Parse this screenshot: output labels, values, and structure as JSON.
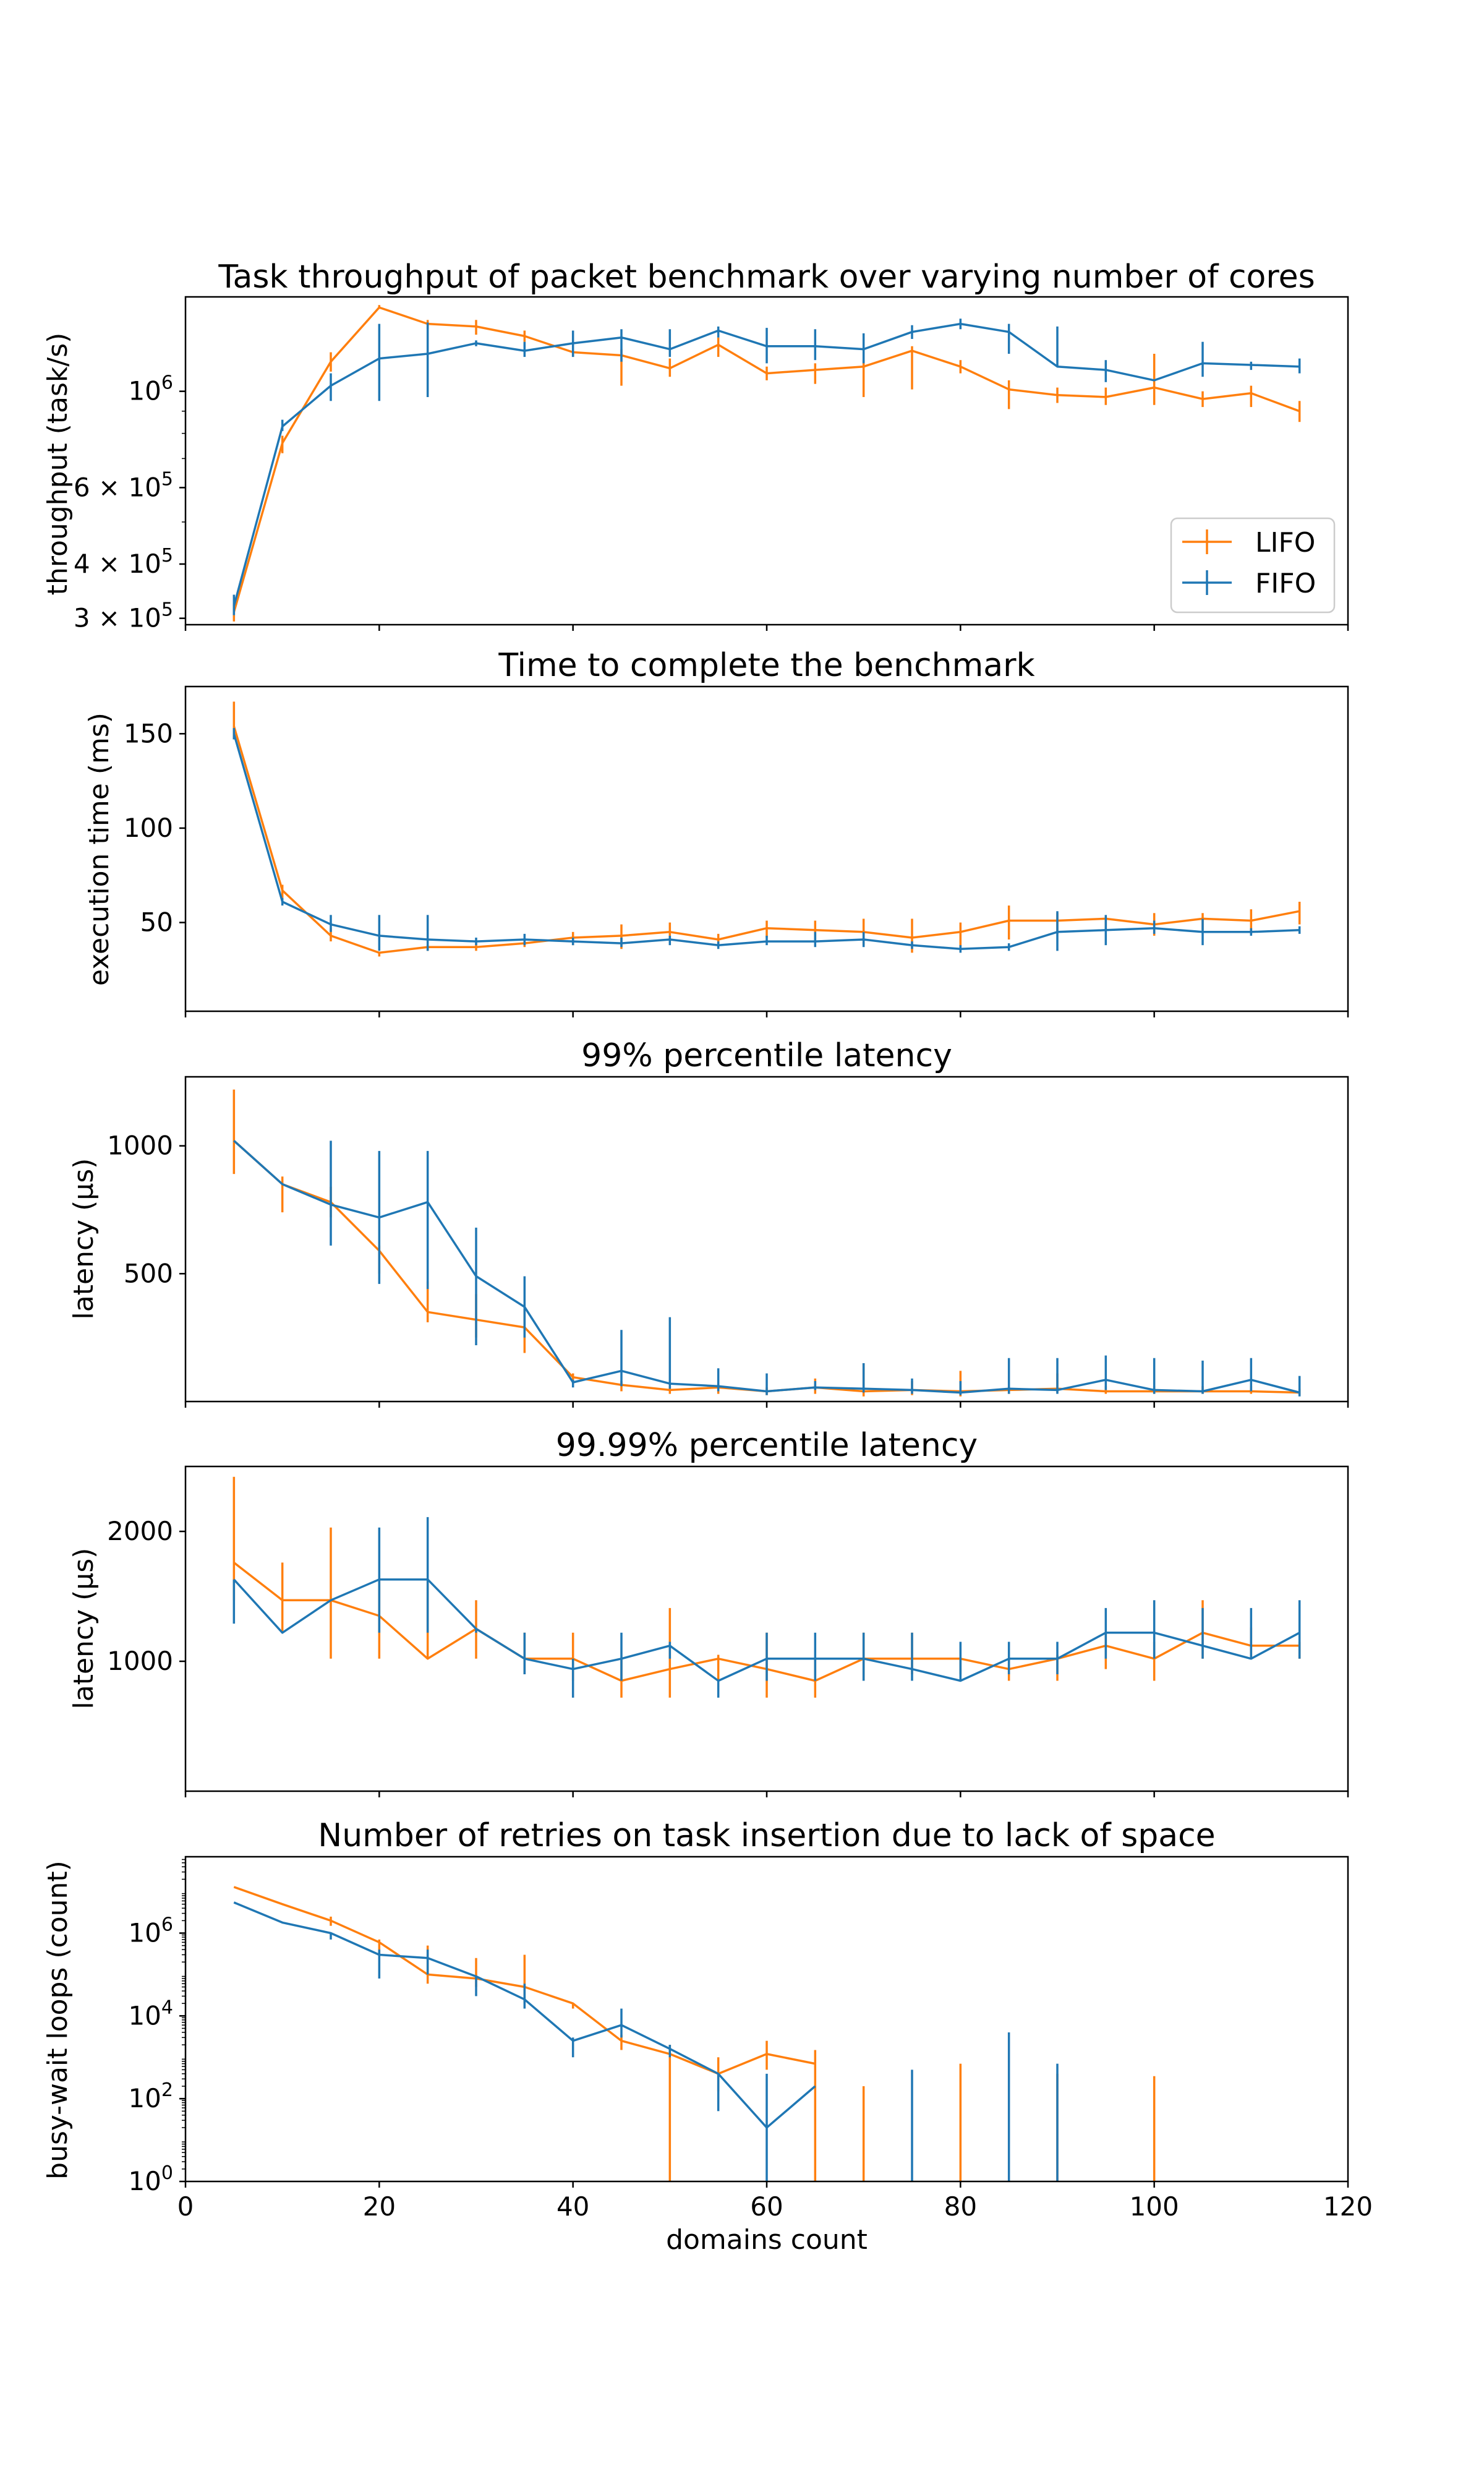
{
  "colors": {
    "LIFO": "#ff7f0e",
    "FIFO": "#1f77b4"
  },
  "legend": {
    "placement": "lower-right",
    "entries": [
      "LIFO",
      "FIFO"
    ]
  },
  "shared_x": {
    "label": "domains count",
    "lim": [
      0,
      120
    ],
    "ticks": [
      0,
      20,
      40,
      60,
      80,
      100,
      120
    ]
  },
  "chart_data": [
    {
      "type": "line",
      "title": "Task throughput of packet benchmark over varying number of cores",
      "ylabel": "throughput (task/s)",
      "yscale": "log",
      "ylim": [
        290000,
        1650000
      ],
      "yticks": [
        {
          "value": 300000,
          "mant": "3",
          "exp": "5"
        },
        {
          "value": 400000,
          "mant": "4",
          "exp": "5"
        },
        {
          "value": 600000,
          "mant": "6",
          "exp": "5"
        },
        {
          "value": 1000000,
          "mant": "",
          "exp": "6"
        }
      ],
      "x": [
        5,
        10,
        15,
        20,
        25,
        30,
        35,
        40,
        45,
        50,
        55,
        60,
        65,
        70,
        75,
        80,
        85,
        90,
        95,
        100,
        105,
        110,
        115
      ],
      "series": [
        {
          "name": "LIFO",
          "values": [
            310000,
            760000,
            1170000,
            1560000,
            1430000,
            1410000,
            1340000,
            1230000,
            1210000,
            1130000,
            1280000,
            1100000,
            1120000,
            1140000,
            1240000,
            1140000,
            1010000,
            980000,
            970000,
            1020000,
            960000,
            990000,
            900000
          ],
          "err_low": [
            295000,
            720000,
            1110000,
            1560000,
            1390000,
            1350000,
            1300000,
            1200000,
            1030000,
            1080000,
            1200000,
            1060000,
            1040000,
            970000,
            1010000,
            1100000,
            910000,
            940000,
            930000,
            930000,
            920000,
            920000,
            850000
          ],
          "err_high": [
            325000,
            790000,
            1230000,
            1580000,
            1460000,
            1460000,
            1380000,
            1230000,
            1250000,
            1190000,
            1330000,
            1140000,
            1160000,
            1180000,
            1270000,
            1180000,
            1060000,
            1020000,
            1020000,
            1220000,
            1000000,
            1030000,
            950000
          ]
        },
        {
          "name": "FIFO",
          "values": [
            320000,
            830000,
            1030000,
            1190000,
            1220000,
            1290000,
            1240000,
            1290000,
            1330000,
            1250000,
            1380000,
            1270000,
            1270000,
            1250000,
            1370000,
            1430000,
            1370000,
            1140000,
            1120000,
            1060000,
            1160000,
            1150000,
            1140000
          ],
          "err_low": [
            305000,
            810000,
            950000,
            950000,
            970000,
            1270000,
            1200000,
            1200000,
            1170000,
            1200000,
            1330000,
            1160000,
            1180000,
            1160000,
            1320000,
            1390000,
            1220000,
            1140000,
            1050000,
            1060000,
            1080000,
            1120000,
            1100000
          ],
          "err_high": [
            340000,
            860000,
            1100000,
            1430000,
            1440000,
            1310000,
            1300000,
            1380000,
            1390000,
            1390000,
            1410000,
            1400000,
            1390000,
            1360000,
            1420000,
            1470000,
            1430000,
            1410000,
            1180000,
            1060000,
            1300000,
            1170000,
            1190000
          ]
        }
      ]
    },
    {
      "type": "line",
      "title": "Time to complete the benchmark",
      "ylabel": "execution time (ms)",
      "yscale": "linear",
      "ylim": [
        3,
        175
      ],
      "yticks": [
        50,
        100,
        150
      ],
      "x": [
        5,
        10,
        15,
        20,
        25,
        30,
        35,
        40,
        45,
        50,
        55,
        60,
        65,
        70,
        75,
        80,
        85,
        90,
        95,
        100,
        105,
        110,
        115
      ],
      "series": [
        {
          "name": "LIFO",
          "values": [
            154,
            67,
            43,
            34,
            37,
            37,
            39,
            42,
            43,
            45,
            41,
            47,
            46,
            45,
            42,
            45,
            51,
            51,
            52,
            49,
            52,
            51,
            56
          ],
          "err_low": [
            147,
            63,
            40,
            32,
            35,
            35,
            37,
            38,
            36,
            40,
            38,
            42,
            41,
            38,
            34,
            37,
            41,
            44,
            46,
            43,
            46,
            44,
            49
          ],
          "err_high": [
            167,
            70,
            47,
            34,
            38,
            39,
            41,
            45,
            49,
            50,
            44,
            51,
            51,
            52,
            52,
            50,
            59,
            55,
            53,
            55,
            55,
            57,
            61
          ]
        },
        {
          "name": "FIFO",
          "values": [
            150,
            61,
            49,
            43,
            41,
            40,
            41,
            40,
            39,
            41,
            38,
            40,
            40,
            41,
            38,
            36,
            37,
            45,
            46,
            47,
            45,
            45,
            46
          ],
          "err_low": [
            147,
            59,
            45,
            35,
            35,
            38,
            38,
            38,
            37,
            38,
            36,
            38,
            37,
            37,
            36,
            34,
            35,
            35,
            38,
            44,
            38,
            43,
            44
          ],
          "err_high": [
            153,
            63,
            54,
            54,
            54,
            42,
            44,
            42,
            42,
            43,
            40,
            43,
            45,
            45,
            40,
            38,
            39,
            56,
            54,
            51,
            52,
            47,
            48
          ]
        }
      ]
    },
    {
      "type": "line",
      "title": "99% percentile latency",
      "ylabel": "latency (µs)",
      "yscale": "linear",
      "ylim": [
        0,
        1270
      ],
      "yticks": [
        500,
        1000
      ],
      "x": [
        5,
        10,
        15,
        20,
        25,
        30,
        35,
        40,
        45,
        50,
        55,
        60,
        65,
        70,
        75,
        80,
        85,
        90,
        95,
        100,
        105,
        110,
        115
      ],
      "series": [
        {
          "name": "LIFO",
          "values": [
            1020,
            850,
            780,
            590,
            350,
            320,
            290,
            95,
            65,
            45,
            55,
            40,
            55,
            40,
            45,
            40,
            45,
            50,
            40,
            40,
            40,
            40,
            35
          ],
          "err_low": [
            890,
            740,
            720,
            500,
            310,
            250,
            190,
            70,
            40,
            30,
            30,
            25,
            30,
            20,
            25,
            20,
            30,
            35,
            30,
            30,
            30,
            30,
            25
          ],
          "err_high": [
            1220,
            880,
            840,
            610,
            470,
            420,
            360,
            110,
            80,
            60,
            70,
            55,
            90,
            150,
            80,
            120,
            60,
            110,
            60,
            60,
            60,
            60,
            50
          ]
        },
        {
          "name": "FIFO",
          "values": [
            1020,
            850,
            770,
            720,
            780,
            490,
            370,
            75,
            120,
            70,
            60,
            40,
            55,
            50,
            45,
            35,
            50,
            45,
            85,
            45,
            40,
            85,
            35
          ],
          "err_low": [
            1020,
            850,
            610,
            460,
            440,
            220,
            250,
            55,
            60,
            50,
            40,
            25,
            45,
            35,
            30,
            25,
            30,
            30,
            45,
            30,
            30,
            40,
            20
          ],
          "err_high": [
            1020,
            850,
            1020,
            980,
            980,
            680,
            490,
            85,
            280,
            330,
            130,
            110,
            80,
            150,
            90,
            80,
            170,
            170,
            180,
            170,
            160,
            170,
            100
          ]
        }
      ]
    },
    {
      "type": "line",
      "title": "99.99% percentile latency",
      "ylabel": "latency (µs)",
      "yscale": "linear",
      "ylim": [
        0,
        2500
      ],
      "yticks": [
        1000,
        2000
      ],
      "x": [
        5,
        10,
        15,
        20,
        25,
        30,
        35,
        40,
        45,
        50,
        55,
        60,
        65,
        70,
        75,
        80,
        85,
        90,
        95,
        100,
        105,
        110,
        115
      ],
      "series": [
        {
          "name": "LIFO",
          "values": [
            1760,
            1470,
            1470,
            1350,
            1020,
            1250,
            1020,
            1020,
            850,
            940,
            1020,
            940,
            850,
            1020,
            1020,
            1020,
            940,
            1020,
            1120,
            1020,
            1220,
            1120,
            1120
          ],
          "err_low": [
            1470,
            1220,
            1020,
            1020,
            1020,
            1020,
            900,
            850,
            720,
            720,
            850,
            720,
            720,
            850,
            900,
            900,
            850,
            850,
            940,
            850,
            1020,
            1020,
            1020
          ],
          "err_high": [
            2420,
            1760,
            2030,
            1630,
            1630,
            1470,
            1220,
            1220,
            1020,
            1410,
            1050,
            1220,
            1020,
            1220,
            1220,
            1020,
            1020,
            1050,
            1220,
            1150,
            1470,
            1260,
            1150
          ]
        },
        {
          "name": "FIFO",
          "values": [
            1630,
            1220,
            1470,
            1630,
            1630,
            1250,
            1020,
            940,
            1020,
            1120,
            850,
            1020,
            1020,
            1020,
            940,
            850,
            1020,
            1020,
            1220,
            1220,
            1120,
            1020,
            1220
          ],
          "err_low": [
            1290,
            1220,
            1470,
            1220,
            1220,
            1220,
            900,
            720,
            850,
            1020,
            720,
            850,
            850,
            850,
            850,
            850,
            900,
            900,
            1020,
            1020,
            1020,
            1020,
            1020
          ],
          "err_high": [
            1630,
            1220,
            1470,
            2030,
            2110,
            1250,
            1220,
            1020,
            1220,
            1150,
            850,
            1220,
            1220,
            1220,
            1220,
            1150,
            1150,
            1150,
            1410,
            1470,
            1410,
            1410,
            1470
          ]
        }
      ]
    },
    {
      "type": "line",
      "title": "Number of retries on task insertion due to lack of space",
      "ylabel": "busy-wait loops (count)",
      "yscale": "log",
      "ylim": [
        1,
        70000000
      ],
      "yticks": [
        {
          "value": 1,
          "mant": "10",
          "exp": "0"
        },
        {
          "value": 100,
          "mant": "10",
          "exp": "2"
        },
        {
          "value": 10000,
          "mant": "10",
          "exp": "4"
        },
        {
          "value": 1000000,
          "mant": "10",
          "exp": "6"
        }
      ],
      "x": [
        5,
        10,
        15,
        20,
        25,
        30,
        35,
        40,
        45,
        50,
        55,
        60,
        65,
        70,
        75,
        80,
        85,
        90,
        95,
        100,
        105,
        110,
        115
      ],
      "series": [
        {
          "name": "LIFO",
          "values": [
            13000000,
            5000000,
            2000000,
            600000,
            100000,
            80000,
            50000,
            20000,
            2500,
            1200,
            400,
            1200,
            700,
            null,
            null,
            null,
            null,
            null,
            null,
            null,
            null,
            null,
            null
          ],
          "err_low": [
            13000000,
            5000000,
            1500000,
            300000,
            60000,
            50000,
            20000,
            15000,
            1500,
            1,
            150,
            500,
            1,
            1,
            null,
            1,
            null,
            1,
            null,
            1,
            null,
            null,
            null
          ],
          "err_high": [
            13000000,
            5000000,
            2500000,
            700000,
            500000,
            250000,
            300000,
            20000,
            3500,
            2000,
            1000,
            2500,
            1500,
            200,
            null,
            700,
            null,
            400,
            null,
            350,
            null,
            null,
            null
          ]
        },
        {
          "name": "FIFO",
          "values": [
            5500000,
            1800000,
            1000000,
            300000,
            250000,
            90000,
            25000,
            2500,
            6000,
            1600,
            400,
            20,
            200,
            null,
            null,
            null,
            null,
            null,
            null,
            null,
            null,
            null,
            null
          ],
          "err_low": [
            5500000,
            1800000,
            700000,
            80000,
            100000,
            30000,
            15000,
            1000,
            3000,
            1000,
            50,
            1,
            200,
            null,
            1,
            null,
            1,
            1,
            null,
            null,
            null,
            null,
            null
          ],
          "err_high": [
            5500000,
            1800000,
            1000000,
            400000,
            400000,
            90000,
            60000,
            3000,
            15000,
            2000,
            400,
            400,
            200,
            null,
            500,
            null,
            4000,
            700,
            null,
            null,
            null,
            null,
            null
          ]
        }
      ]
    }
  ]
}
